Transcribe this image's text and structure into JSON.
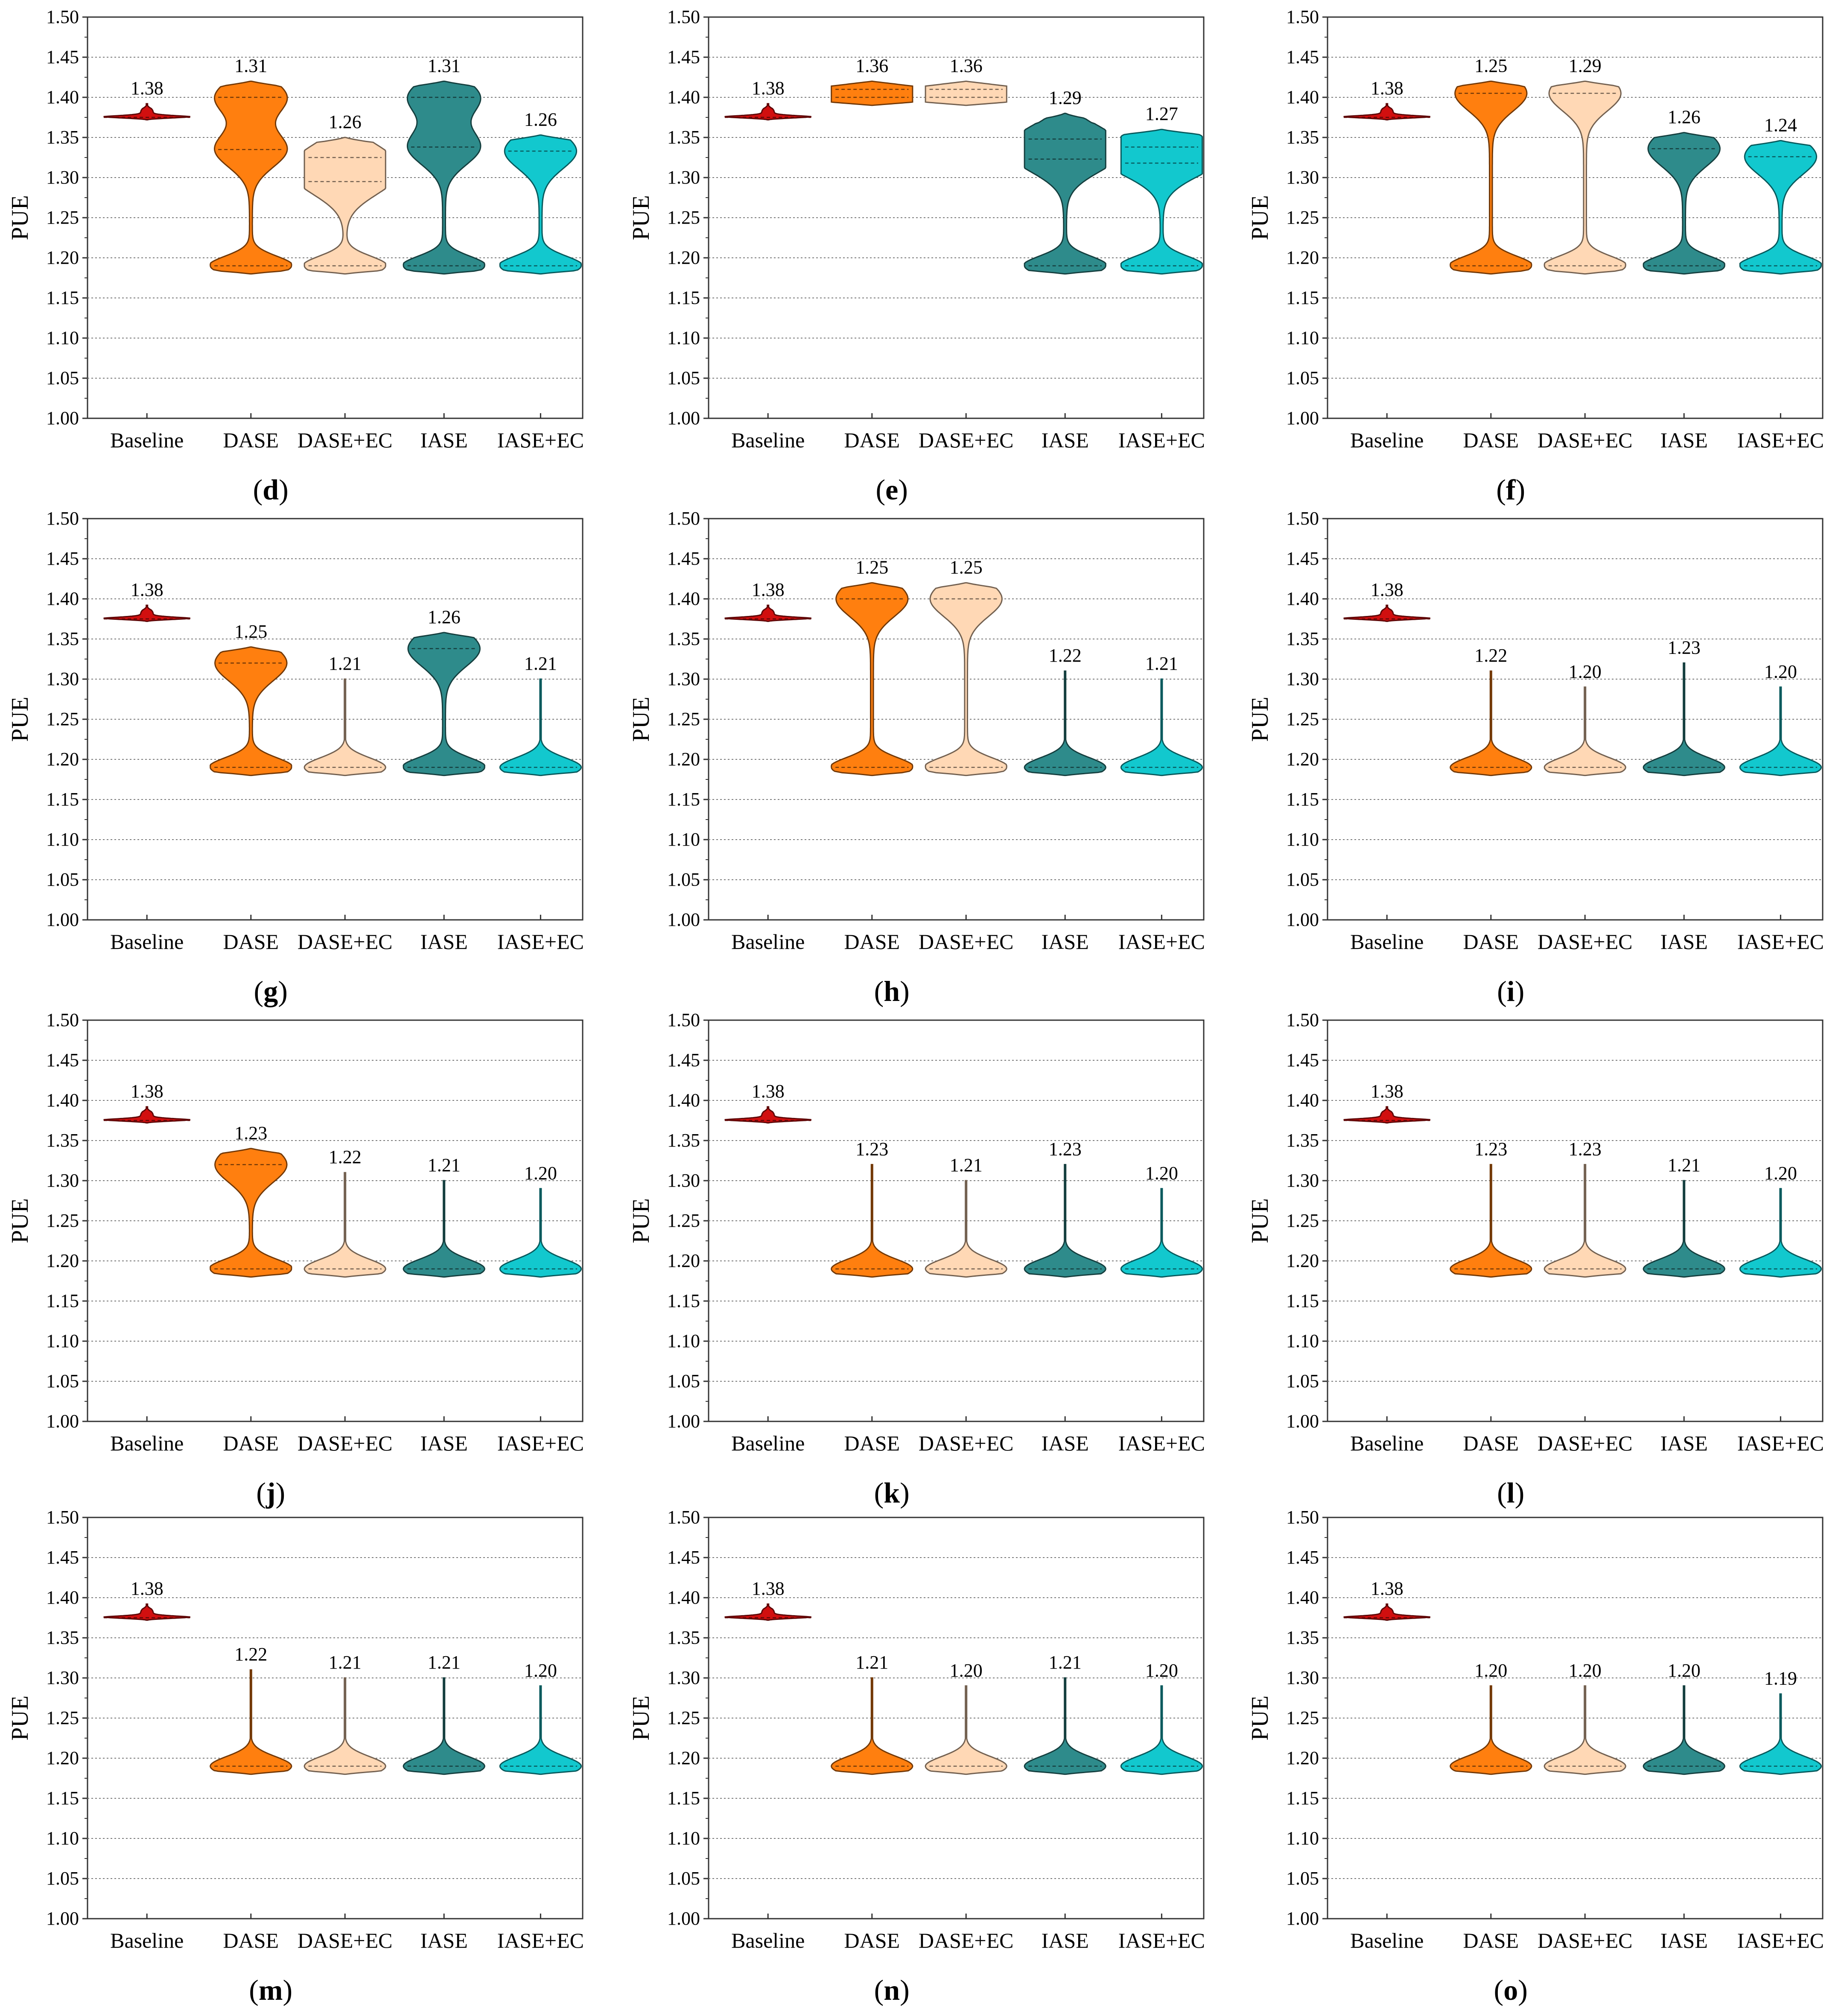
{
  "figure": {
    "category_colors": {
      "Baseline": "#D10F0F",
      "DASE": "#FF7F0F",
      "DASE+EC": "#FFD8B5",
      "IASE": "#2E8B8B",
      "IASE+EC": "#12C8CE"
    }
  },
  "chart_data": [
    {
      "type": "violin",
      "label": "d",
      "title": "",
      "xlabel": "",
      "ylabel": "PUE",
      "ylim": [
        1.0,
        1.5
      ],
      "grid": true,
      "yticks": [
        "1.00",
        "1.05",
        "1.10",
        "1.15",
        "1.20",
        "1.25",
        "1.30",
        "1.35",
        "1.40",
        "1.45",
        "1.50"
      ],
      "categories": [
        "Baseline",
        "DASE",
        "DASE+EC",
        "IASE",
        "IASE+EC"
      ],
      "means": [
        "1.38",
        "1.31",
        "1.26",
        "1.31",
        "1.26"
      ],
      "values": [
        1.38,
        1.31,
        1.26,
        1.31,
        1.26
      ],
      "dashed_lines": [
        [
          1.375
        ],
        [
          1.19,
          1.335,
          1.4
        ],
        [
          1.19,
          1.295,
          1.325
        ],
        [
          1.19,
          1.338,
          1.4
        ],
        [
          1.19,
          1.333
        ]
      ]
    },
    {
      "type": "violin",
      "label": "e",
      "title": "",
      "xlabel": "",
      "ylabel": "PUE",
      "ylim": [
        1.0,
        1.5
      ],
      "grid": true,
      "yticks": [
        "1.00",
        "1.05",
        "1.10",
        "1.15",
        "1.20",
        "1.25",
        "1.30",
        "1.35",
        "1.40",
        "1.45",
        "1.50"
      ],
      "categories": [
        "Baseline",
        "DASE",
        "DASE+EC",
        "IASE",
        "IASE+EC"
      ],
      "means": [
        "1.38",
        "1.36",
        "1.36",
        "1.29",
        "1.27"
      ],
      "values": [
        1.38,
        1.36,
        1.36,
        1.29,
        1.27
      ],
      "dashed_lines": [
        [
          1.375
        ],
        [
          1.4,
          1.41
        ],
        [
          1.4,
          1.41
        ],
        [
          1.19,
          1.323,
          1.348
        ],
        [
          1.19,
          1.318,
          1.338
        ]
      ]
    },
    {
      "type": "violin",
      "label": "f",
      "title": "",
      "xlabel": "",
      "ylabel": "PUE",
      "ylim": [
        1.0,
        1.5
      ],
      "grid": true,
      "yticks": [
        "1.00",
        "1.05",
        "1.10",
        "1.15",
        "1.20",
        "1.25",
        "1.30",
        "1.35",
        "1.40",
        "1.45",
        "1.50"
      ],
      "categories": [
        "Baseline",
        "DASE",
        "DASE+EC",
        "IASE",
        "IASE+EC"
      ],
      "means": [
        "1.38",
        "1.25",
        "1.29",
        "1.26",
        "1.24"
      ],
      "values": [
        1.38,
        1.25,
        1.29,
        1.26,
        1.24
      ],
      "dashed_lines": [
        [
          1.375
        ],
        [
          1.19,
          1.405
        ],
        [
          1.19,
          1.405
        ],
        [
          1.19,
          1.336
        ],
        [
          1.19,
          1.326
        ]
      ]
    },
    {
      "type": "violin",
      "label": "g",
      "title": "",
      "xlabel": "",
      "ylabel": "PUE",
      "ylim": [
        1.0,
        1.5
      ],
      "grid": true,
      "yticks": [
        "1.00",
        "1.05",
        "1.10",
        "1.15",
        "1.20",
        "1.25",
        "1.30",
        "1.35",
        "1.40",
        "1.45",
        "1.50"
      ],
      "categories": [
        "Baseline",
        "DASE",
        "DASE+EC",
        "IASE",
        "IASE+EC"
      ],
      "means": [
        "1.38",
        "1.25",
        "1.21",
        "1.26",
        "1.21"
      ],
      "values": [
        1.38,
        1.25,
        1.21,
        1.26,
        1.21
      ],
      "dashed_lines": [
        [
          1.375
        ],
        [
          1.19,
          1.32
        ],
        [
          1.19
        ],
        [
          1.19,
          1.338
        ],
        [
          1.19
        ]
      ]
    },
    {
      "type": "violin",
      "label": "h",
      "title": "",
      "xlabel": "",
      "ylabel": "PUE",
      "ylim": [
        1.0,
        1.5
      ],
      "grid": true,
      "yticks": [
        "1.00",
        "1.05",
        "1.10",
        "1.15",
        "1.20",
        "1.25",
        "1.30",
        "1.35",
        "1.40",
        "1.45",
        "1.50"
      ],
      "categories": [
        "Baseline",
        "DASE",
        "DASE+EC",
        "IASE",
        "IASE+EC"
      ],
      "means": [
        "1.38",
        "1.25",
        "1.25",
        "1.22",
        "1.21"
      ],
      "values": [
        1.38,
        1.25,
        1.25,
        1.22,
        1.21
      ],
      "dashed_lines": [
        [
          1.375
        ],
        [
          1.19,
          1.4
        ],
        [
          1.19,
          1.4
        ],
        [
          1.19
        ],
        [
          1.19
        ]
      ]
    },
    {
      "type": "violin",
      "label": "i",
      "title": "",
      "xlabel": "",
      "ylabel": "PUE",
      "ylim": [
        1.0,
        1.5
      ],
      "grid": true,
      "yticks": [
        "1.00",
        "1.05",
        "1.10",
        "1.15",
        "1.20",
        "1.25",
        "1.30",
        "1.35",
        "1.40",
        "1.45",
        "1.50"
      ],
      "categories": [
        "Baseline",
        "DASE",
        "DASE+EC",
        "IASE",
        "IASE+EC"
      ],
      "means": [
        "1.38",
        "1.22",
        "1.20",
        "1.23",
        "1.20"
      ],
      "values": [
        1.38,
        1.22,
        1.2,
        1.23,
        1.2
      ],
      "dashed_lines": [
        [
          1.375
        ],
        [
          1.19
        ],
        [
          1.19
        ],
        [
          1.19
        ],
        [
          1.19
        ]
      ]
    },
    {
      "type": "violin",
      "label": "j",
      "title": "",
      "xlabel": "",
      "ylabel": "PUE",
      "ylim": [
        1.0,
        1.5
      ],
      "grid": true,
      "yticks": [
        "1.00",
        "1.05",
        "1.10",
        "1.15",
        "1.20",
        "1.25",
        "1.30",
        "1.35",
        "1.40",
        "1.45",
        "1.50"
      ],
      "categories": [
        "Baseline",
        "DASE",
        "DASE+EC",
        "IASE",
        "IASE+EC"
      ],
      "means": [
        "1.38",
        "1.23",
        "1.22",
        "1.21",
        "1.20"
      ],
      "values": [
        1.38,
        1.23,
        1.22,
        1.21,
        1.2
      ],
      "dashed_lines": [
        [
          1.375
        ],
        [
          1.19,
          1.32
        ],
        [
          1.19
        ],
        [
          1.19
        ],
        [
          1.19
        ]
      ]
    },
    {
      "type": "violin",
      "label": "k",
      "title": "",
      "xlabel": "",
      "ylabel": "PUE",
      "ylim": [
        1.0,
        1.5
      ],
      "grid": true,
      "yticks": [
        "1.00",
        "1.05",
        "1.10",
        "1.15",
        "1.20",
        "1.25",
        "1.30",
        "1.35",
        "1.40",
        "1.45",
        "1.50"
      ],
      "categories": [
        "Baseline",
        "DASE",
        "DASE+EC",
        "IASE",
        "IASE+EC"
      ],
      "means": [
        "1.38",
        "1.23",
        "1.21",
        "1.23",
        "1.20"
      ],
      "values": [
        1.38,
        1.23,
        1.21,
        1.23,
        1.2
      ],
      "dashed_lines": [
        [
          1.375
        ],
        [
          1.19
        ],
        [
          1.19
        ],
        [
          1.19
        ],
        [
          1.19
        ]
      ]
    },
    {
      "type": "violin",
      "label": "l",
      "title": "",
      "xlabel": "",
      "ylabel": "PUE",
      "ylim": [
        1.0,
        1.5
      ],
      "grid": true,
      "yticks": [
        "1.00",
        "1.05",
        "1.10",
        "1.15",
        "1.20",
        "1.25",
        "1.30",
        "1.35",
        "1.40",
        "1.45",
        "1.50"
      ],
      "categories": [
        "Baseline",
        "DASE",
        "DASE+EC",
        "IASE",
        "IASE+EC"
      ],
      "means": [
        "1.38",
        "1.23",
        "1.23",
        "1.21",
        "1.20"
      ],
      "values": [
        1.38,
        1.23,
        1.23,
        1.21,
        1.2
      ],
      "dashed_lines": [
        [
          1.375
        ],
        [
          1.19
        ],
        [
          1.19
        ],
        [
          1.19
        ],
        [
          1.19
        ]
      ]
    },
    {
      "type": "violin",
      "label": "m",
      "title": "",
      "xlabel": "",
      "ylabel": "PUE",
      "ylim": [
        1.0,
        1.5
      ],
      "grid": true,
      "yticks": [
        "1.00",
        "1.05",
        "1.10",
        "1.15",
        "1.20",
        "1.25",
        "1.30",
        "1.35",
        "1.40",
        "1.45",
        "1.50"
      ],
      "categories": [
        "Baseline",
        "DASE",
        "DASE+EC",
        "IASE",
        "IASE+EC"
      ],
      "means": [
        "1.38",
        "1.22",
        "1.21",
        "1.21",
        "1.20"
      ],
      "values": [
        1.38,
        1.22,
        1.21,
        1.21,
        1.2
      ],
      "dashed_lines": [
        [
          1.375
        ],
        [
          1.19
        ],
        [
          1.19
        ],
        [
          1.19
        ],
        [
          1.19
        ]
      ]
    },
    {
      "type": "violin",
      "label": "n",
      "title": "",
      "xlabel": "",
      "ylabel": "PUE",
      "ylim": [
        1.0,
        1.5
      ],
      "grid": true,
      "yticks": [
        "1.00",
        "1.05",
        "1.10",
        "1.15",
        "1.20",
        "1.25",
        "1.30",
        "1.35",
        "1.40",
        "1.45",
        "1.50"
      ],
      "categories": [
        "Baseline",
        "DASE",
        "DASE+EC",
        "IASE",
        "IASE+EC"
      ],
      "means": [
        "1.38",
        "1.21",
        "1.20",
        "1.21",
        "1.20"
      ],
      "values": [
        1.38,
        1.21,
        1.2,
        1.21,
        1.2
      ],
      "dashed_lines": [
        [
          1.375
        ],
        [
          1.19
        ],
        [
          1.19
        ],
        [
          1.19
        ],
        [
          1.19
        ]
      ]
    },
    {
      "type": "violin",
      "label": "o",
      "title": "",
      "xlabel": "",
      "ylabel": "PUE",
      "ylim": [
        1.0,
        1.5
      ],
      "grid": true,
      "yticks": [
        "1.00",
        "1.05",
        "1.10",
        "1.15",
        "1.20",
        "1.25",
        "1.30",
        "1.35",
        "1.40",
        "1.45",
        "1.50"
      ],
      "categories": [
        "Baseline",
        "DASE",
        "DASE+EC",
        "IASE",
        "IASE+EC"
      ],
      "means": [
        "1.38",
        "1.20",
        "1.20",
        "1.20",
        "1.19"
      ],
      "values": [
        1.38,
        1.2,
        1.2,
        1.2,
        1.19
      ],
      "dashed_lines": [
        [
          1.375
        ],
        [
          1.19
        ],
        [
          1.19
        ],
        [
          1.19
        ],
        [
          1.19
        ]
      ]
    }
  ]
}
